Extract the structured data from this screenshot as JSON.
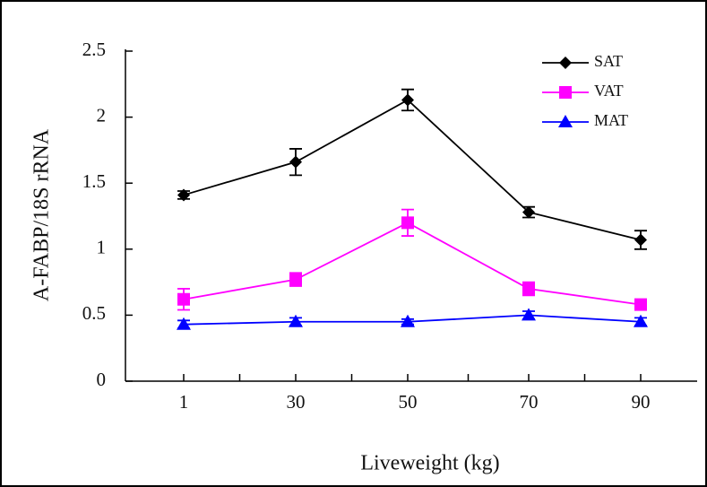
{
  "chart_data": {
    "type": "line",
    "x_label": "Liveweight (kg)",
    "y_label": "A-FABP/18S rRNA",
    "categories": [
      "1",
      "30",
      "50",
      "70",
      "90"
    ],
    "ylim": [
      0,
      2.5
    ],
    "yticks": [
      0,
      0.5,
      1,
      1.5,
      2,
      2.5
    ],
    "legend": "top-right",
    "series": [
      {
        "name": "SAT",
        "color": "#000000",
        "marker": "diamond",
        "values": [
          1.41,
          1.66,
          2.13,
          1.28,
          1.07
        ],
        "errors": [
          0.03,
          0.1,
          0.08,
          0.04,
          0.07
        ]
      },
      {
        "name": "VAT",
        "color": "#ff00ff",
        "marker": "square",
        "values": [
          0.62,
          0.77,
          1.2,
          0.7,
          0.58
        ],
        "errors": [
          0.08,
          0.05,
          0.1,
          0.05,
          0.04
        ]
      },
      {
        "name": "MAT",
        "color": "#0000ff",
        "marker": "triangle",
        "values": [
          0.43,
          0.45,
          0.45,
          0.5,
          0.45
        ],
        "errors": [
          0.03,
          0.03,
          0.02,
          0.03,
          0.03
        ]
      }
    ]
  }
}
